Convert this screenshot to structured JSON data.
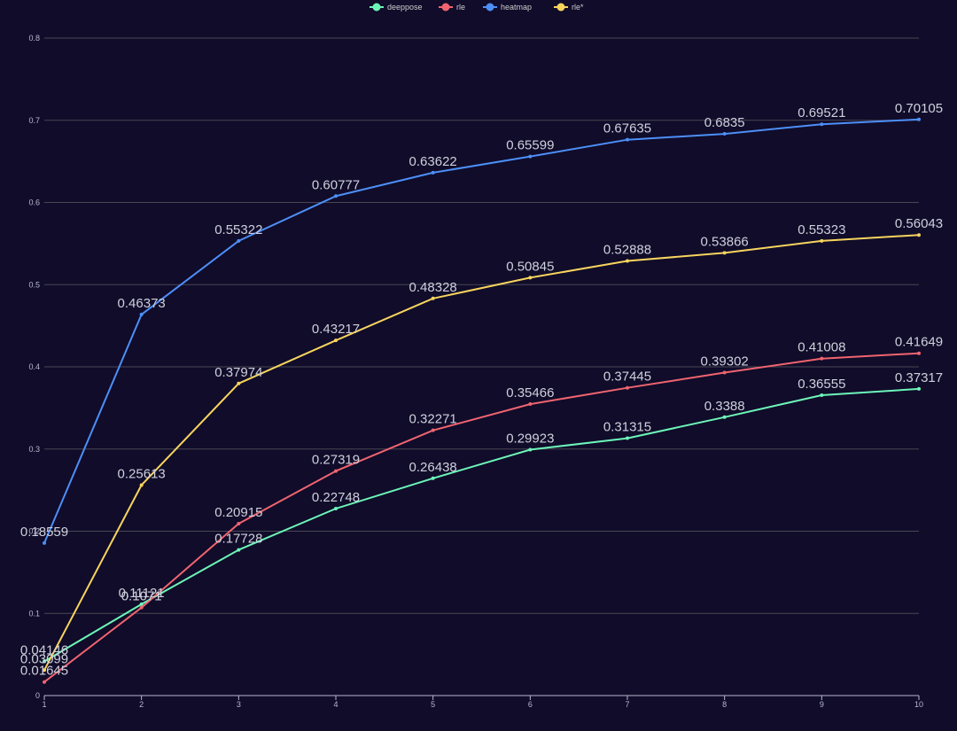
{
  "chart_data": {
    "type": "line",
    "title": "",
    "xlabel": "",
    "ylabel": "",
    "x": [
      1,
      2,
      3,
      4,
      5,
      6,
      7,
      8,
      9,
      10
    ],
    "x_tick_labels": [
      "1",
      "2",
      "3",
      "4",
      "5",
      "6",
      "7",
      "8",
      "9",
      "10"
    ],
    "y_tick_labels": [
      "0",
      "0.1",
      "0.2",
      "0.3",
      "0.4",
      "0.5",
      "0.6",
      "0.7",
      "0.8"
    ],
    "ylim": [
      0,
      0.8
    ],
    "grid": true,
    "legend_position": "top-center",
    "series": [
      {
        "name": "deeppose",
        "color": "#6df5b8",
        "values": [
          0.04146,
          0.11121,
          0.17728,
          0.22748,
          0.26438,
          0.29923,
          0.31315,
          0.3388,
          0.36555,
          0.37317
        ],
        "labels": [
          "0.04146",
          "0.11121",
          "0.17728",
          "0.22748",
          "0.26438",
          "0.29923",
          "0.31315",
          "0.3388",
          "0.36555",
          "0.37317"
        ]
      },
      {
        "name": "rle",
        "color": "#f0646f",
        "values": [
          0.01645,
          0.1071,
          0.20915,
          0.27319,
          0.32271,
          0.35466,
          0.37445,
          0.39302,
          0.41008,
          0.41649
        ],
        "labels": [
          "0.01645",
          "0.1071",
          "0.20915",
          "0.27319",
          "0.32271",
          "0.35466",
          "0.37445",
          "0.39302",
          "0.41008",
          "0.41649"
        ]
      },
      {
        "name": "heatmap",
        "color": "#4d8ff7",
        "values": [
          0.18559,
          0.46373,
          0.55322,
          0.60777,
          0.63622,
          0.65599,
          0.67635,
          0.6835,
          0.69521,
          0.70105
        ],
        "labels": [
          "0.18559",
          "0.46373",
          "0.55322",
          "0.60777",
          "0.63622",
          "0.65599",
          "0.67635",
          "0.6835",
          "0.69521",
          "0.70105"
        ]
      },
      {
        "name": "rle*",
        "color": "#f8d45e",
        "values": [
          0.03099,
          0.25613,
          0.37974,
          0.43217,
          0.48328,
          0.50845,
          0.52888,
          0.53866,
          0.55323,
          0.56043
        ],
        "labels": [
          "0.03099",
          "0.25613",
          "0.37974",
          "0.43217",
          "0.48328",
          "0.50845",
          "0.52888",
          "0.53866",
          "0.55323",
          "0.56043"
        ]
      }
    ]
  },
  "colors": {
    "background": "#100c2a",
    "grid": "#484753",
    "axis": "#b9b8ce",
    "text": "#b9b8ce",
    "data_label": "#cfd0dc"
  }
}
